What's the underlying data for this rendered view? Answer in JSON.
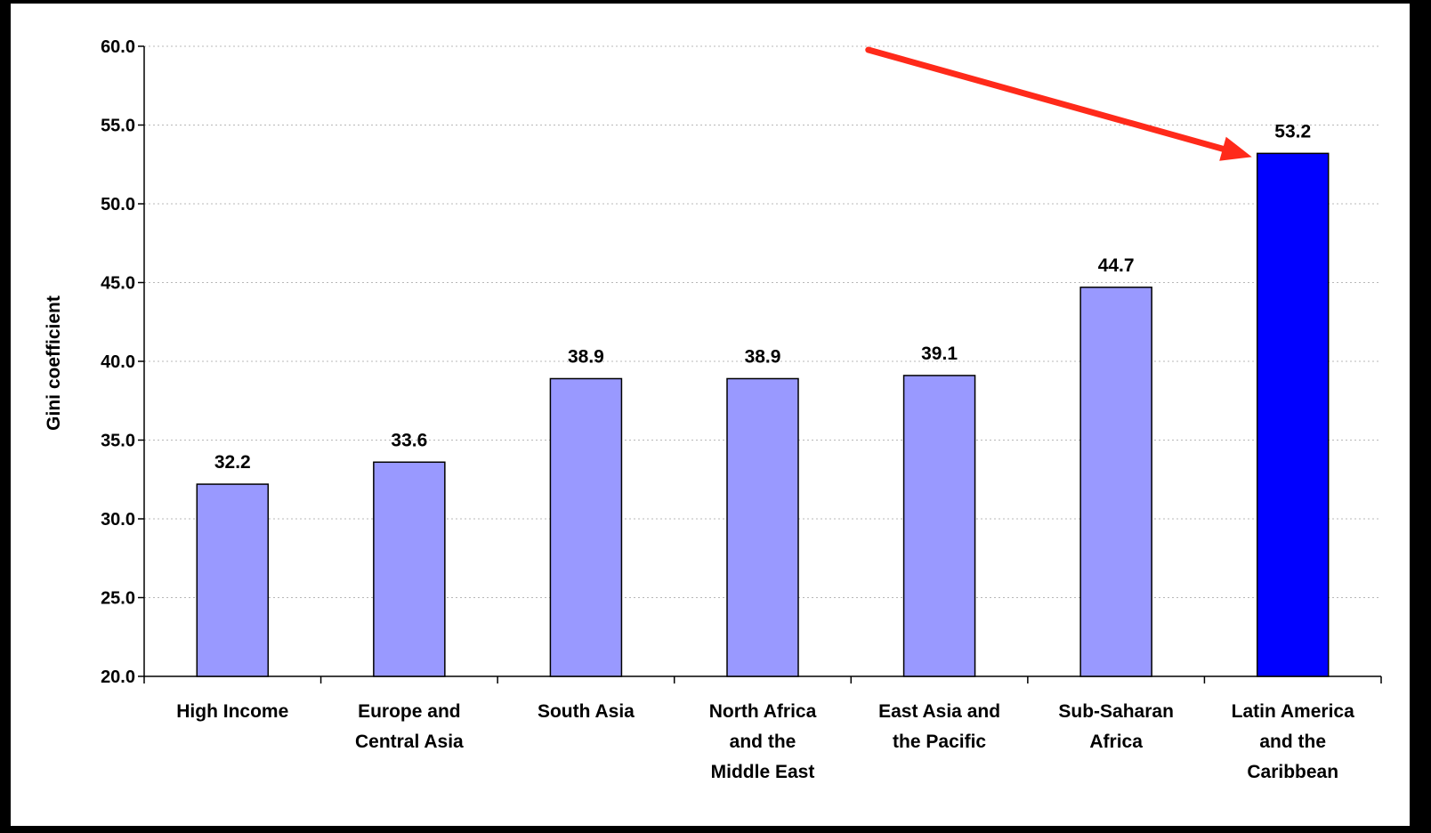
{
  "chart_data": {
    "type": "bar",
    "title": "",
    "xlabel": "",
    "ylabel": "Gini coefficient",
    "ylim": [
      20,
      60
    ],
    "yticks": [
      "20.0",
      "25.0",
      "30.0",
      "35.0",
      "40.0",
      "45.0",
      "50.0",
      "55.0",
      "60.0"
    ],
    "ytick_values": [
      20,
      25,
      30,
      35,
      40,
      45,
      50,
      55,
      60
    ],
    "grid": "horizontal dotted",
    "legend": "none",
    "categories": [
      "High Income",
      "Europe and Central Asia",
      "South Asia",
      "North Africa and the Middle East",
      "East Asia and the Pacific",
      "Sub-Saharan Africa",
      "Latin America and the Caribbean"
    ],
    "category_lines": [
      [
        "High Income"
      ],
      [
        "Europe and",
        "Central Asia"
      ],
      [
        "South Asia"
      ],
      [
        "North Africa",
        "and the",
        "Middle East"
      ],
      [
        "East Asia and",
        "the Pacific"
      ],
      [
        "Sub-Saharan",
        "Africa"
      ],
      [
        "Latin America",
        "and the",
        "Caribbean"
      ]
    ],
    "values": [
      32.2,
      33.6,
      38.9,
      38.9,
      39.1,
      44.7,
      53.2
    ],
    "value_labels": [
      "32.2",
      "33.6",
      "38.9",
      "38.9",
      "39.1",
      "44.7",
      "53.2"
    ],
    "bar_colors": [
      "#9999ff",
      "#9999ff",
      "#9999ff",
      "#9999ff",
      "#9999ff",
      "#9999ff",
      "#0000ff"
    ],
    "highlight_index": 6,
    "annotation": {
      "type": "arrow",
      "color": "#ff2a1a",
      "points_to": "Latin America and the Caribbean"
    }
  }
}
